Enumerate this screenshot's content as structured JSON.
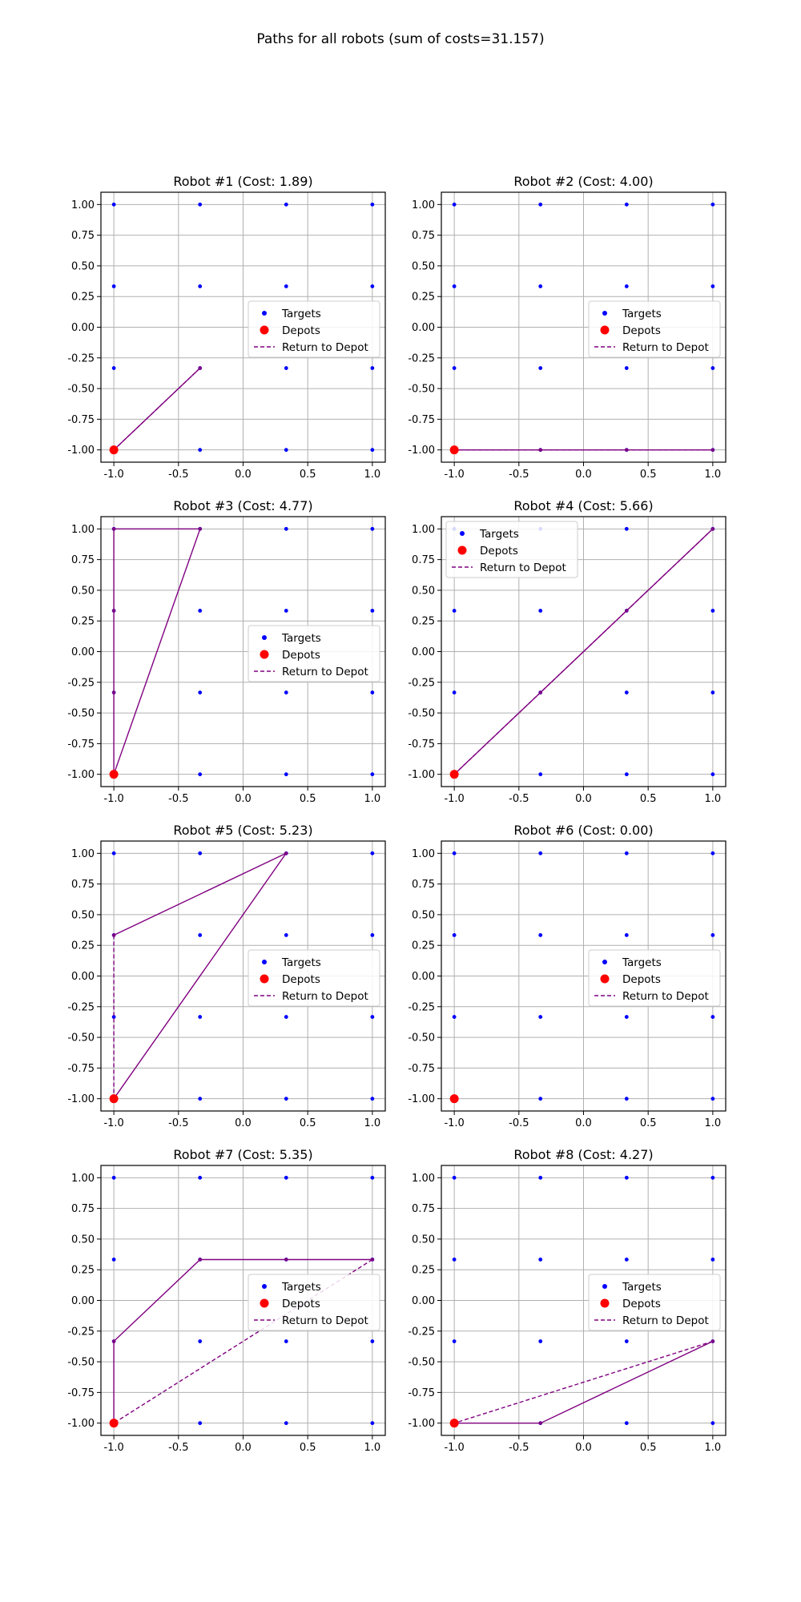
{
  "figure": {
    "title": "Paths for all robots (sum of costs=31.157)"
  },
  "colors": {
    "targets": "#0000ff",
    "depots": "#ff0000",
    "path": "#800080",
    "grid": "#b0b0b0"
  },
  "legend_labels": {
    "targets": "Targets",
    "depots": "Depots",
    "return": "Return to Depot"
  },
  "chart_data": [
    {
      "type": "scatter",
      "title": "Robot #1 (Cost: 1.89)",
      "xlim": [
        -1.1,
        1.1
      ],
      "ylim": [
        -1.1,
        1.1
      ],
      "xticks": [
        "-1.0",
        "-0.5",
        "0.0",
        "0.5",
        "1.0"
      ],
      "yticks": [
        "1.00",
        "0.75",
        "0.50",
        "0.25",
        "0.00",
        "-0.25",
        "-0.50",
        "-0.75",
        "-1.00"
      ],
      "grid": true,
      "legend": "center-right",
      "targets": "4x4 grid at x,y in {-1, -0.333, 0.333, 1}",
      "depot": [
        -1,
        -1
      ],
      "path": [
        [
          -1,
          -1
        ],
        [
          -0.333,
          -0.333
        ]
      ],
      "return": [
        [
          -0.333,
          -0.333
        ],
        [
          -1,
          -1
        ]
      ]
    },
    {
      "type": "scatter",
      "title": "Robot #2 (Cost: 4.00)",
      "xlim": [
        -1.1,
        1.1
      ],
      "ylim": [
        -1.1,
        1.1
      ],
      "xticks": [
        "-1.0",
        "-0.5",
        "0.0",
        "0.5",
        "1.0"
      ],
      "yticks": [
        "1.00",
        "0.75",
        "0.50",
        "0.25",
        "0.00",
        "-0.25",
        "-0.50",
        "-0.75",
        "-1.00"
      ],
      "grid": true,
      "legend": "center-right",
      "depot": [
        -1,
        -1
      ],
      "path": [
        [
          -1,
          -1
        ],
        [
          -0.333,
          -1
        ],
        [
          0.333,
          -1
        ],
        [
          1,
          -1
        ]
      ],
      "return": [
        [
          1,
          -1
        ],
        [
          -1,
          -1
        ]
      ]
    },
    {
      "type": "scatter",
      "title": "Robot #3 (Cost: 4.77)",
      "xlim": [
        -1.1,
        1.1
      ],
      "ylim": [
        -1.1,
        1.1
      ],
      "xticks": [
        "-1.0",
        "-0.5",
        "0.0",
        "0.5",
        "1.0"
      ],
      "yticks": [
        "1.00",
        "0.75",
        "0.50",
        "0.25",
        "0.00",
        "-0.25",
        "-0.50",
        "-0.75",
        "-1.00"
      ],
      "grid": true,
      "legend": "center-right",
      "depot": [
        -1,
        -1
      ],
      "path": [
        [
          -1,
          -1
        ],
        [
          -1,
          -0.333
        ],
        [
          -1,
          0.333
        ],
        [
          -1,
          1
        ],
        [
          -0.333,
          1
        ],
        [
          -1,
          -1
        ]
      ],
      "return": [
        [
          -1,
          -1
        ],
        [
          -1,
          -1
        ]
      ]
    },
    {
      "type": "scatter",
      "title": "Robot #4 (Cost: 5.66)",
      "xlim": [
        -1.1,
        1.1
      ],
      "ylim": [
        -1.1,
        1.1
      ],
      "xticks": [
        "-1.0",
        "-0.5",
        "0.0",
        "0.5",
        "1.0"
      ],
      "yticks": [
        "1.00",
        "0.75",
        "0.50",
        "0.25",
        "0.00",
        "-0.25",
        "-0.50",
        "-0.75",
        "-1.00"
      ],
      "grid": true,
      "legend": "top-left",
      "depot": [
        -1,
        -1
      ],
      "path": [
        [
          -1,
          -1
        ],
        [
          -0.333,
          -0.333
        ],
        [
          0.333,
          0.333
        ],
        [
          1,
          1
        ]
      ],
      "return": [
        [
          1,
          1
        ],
        [
          -1,
          -1
        ]
      ]
    },
    {
      "type": "scatter",
      "title": "Robot #5 (Cost: 5.23)",
      "xlim": [
        -1.1,
        1.1
      ],
      "ylim": [
        -1.1,
        1.1
      ],
      "xticks": [
        "-1.0",
        "-0.5",
        "0.0",
        "0.5",
        "1.0"
      ],
      "yticks": [
        "1.00",
        "0.75",
        "0.50",
        "0.25",
        "0.00",
        "-0.25",
        "-0.50",
        "-0.75",
        "-1.00"
      ],
      "grid": true,
      "legend": "center-right",
      "depot": [
        -1,
        -1
      ],
      "path": [
        [
          -1,
          -1
        ],
        [
          0.333,
          1
        ],
        [
          -1,
          0.333
        ]
      ],
      "return": [
        [
          -1,
          0.333
        ],
        [
          -1,
          -1
        ]
      ]
    },
    {
      "type": "scatter",
      "title": "Robot #6 (Cost: 0.00)",
      "xlim": [
        -1.1,
        1.1
      ],
      "ylim": [
        -1.1,
        1.1
      ],
      "xticks": [
        "-1.0",
        "-0.5",
        "0.0",
        "0.5",
        "1.0"
      ],
      "yticks": [
        "1.00",
        "0.75",
        "0.50",
        "0.25",
        "0.00",
        "-0.25",
        "-0.50",
        "-0.75",
        "-1.00"
      ],
      "grid": true,
      "legend": "center-right",
      "depot": [
        -1,
        -1
      ],
      "path": [],
      "return": []
    },
    {
      "type": "scatter",
      "title": "Robot #7 (Cost: 5.35)",
      "xlim": [
        -1.1,
        1.1
      ],
      "ylim": [
        -1.1,
        1.1
      ],
      "xticks": [
        "-1.0",
        "-0.5",
        "0.0",
        "0.5",
        "1.0"
      ],
      "yticks": [
        "1.00",
        "0.75",
        "0.50",
        "0.25",
        "0.00",
        "-0.25",
        "-0.50",
        "-0.75",
        "-1.00"
      ],
      "grid": true,
      "legend": "center-right",
      "depot": [
        -1,
        -1
      ],
      "path": [
        [
          -1,
          -1
        ],
        [
          -1,
          -0.333
        ],
        [
          -0.333,
          0.333
        ],
        [
          0.333,
          0.333
        ],
        [
          1,
          0.333
        ]
      ],
      "return": [
        [
          1,
          0.333
        ],
        [
          -1,
          -1
        ]
      ]
    },
    {
      "type": "scatter",
      "title": "Robot #8 (Cost: 4.27)",
      "xlim": [
        -1.1,
        1.1
      ],
      "ylim": [
        -1.1,
        1.1
      ],
      "xticks": [
        "-1.0",
        "-0.5",
        "0.0",
        "0.5",
        "1.0"
      ],
      "yticks": [
        "1.00",
        "0.75",
        "0.50",
        "0.25",
        "0.00",
        "-0.25",
        "-0.50",
        "-0.75",
        "-1.00"
      ],
      "grid": true,
      "legend": "center-right",
      "depot": [
        -1,
        -1
      ],
      "path": [
        [
          -1,
          -1
        ],
        [
          -0.333,
          -1
        ],
        [
          1,
          -0.333
        ]
      ],
      "return": [
        [
          1,
          -0.333
        ],
        [
          -1,
          -1
        ]
      ]
    }
  ]
}
